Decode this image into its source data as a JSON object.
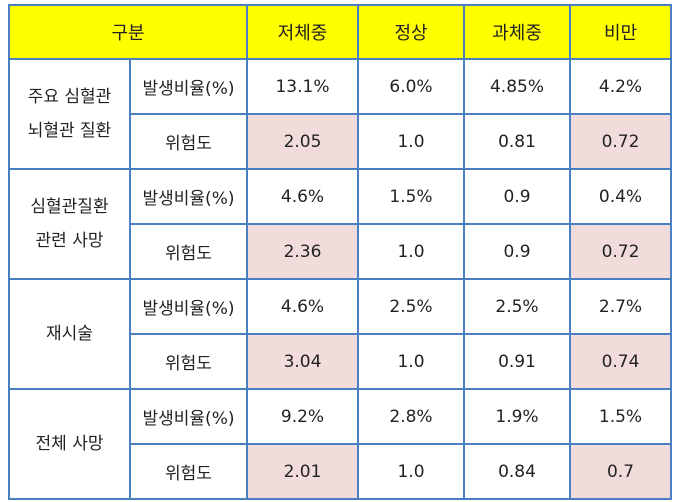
{
  "header": {
    "category": "구분",
    "cols": [
      "저체중",
      "정상",
      "과체중",
      "비만"
    ]
  },
  "groups": [
    {
      "label_lines": [
        "주요 심혈관",
        "뇌혈관 질환"
      ],
      "rows": [
        {
          "label": "발생비율(%)",
          "values": [
            "13.1%",
            "6.0%",
            "4.85%",
            "4.2%"
          ]
        },
        {
          "label": "위험도",
          "values": [
            "2.05",
            "1.0",
            "0.81",
            "0.72"
          ]
        }
      ]
    },
    {
      "label_lines": [
        "심혈관질환",
        "관련 사망"
      ],
      "rows": [
        {
          "label": "발생비율(%)",
          "values": [
            "4.6%",
            "1.5%",
            "0.9",
            "0.4%"
          ]
        },
        {
          "label": "위험도",
          "values": [
            "2.36",
            "1.0",
            "0.9",
            "0.72"
          ]
        }
      ]
    },
    {
      "label_lines": [
        "재시술"
      ],
      "rows": [
        {
          "label": "발생비율(%)",
          "values": [
            "4.6%",
            "2.5%",
            "2.5%",
            "2.7%"
          ]
        },
        {
          "label": "위험도",
          "values": [
            "3.04",
            "1.0",
            "0.91",
            "0.74"
          ]
        }
      ]
    },
    {
      "label_lines": [
        "전체 사망"
      ],
      "rows": [
        {
          "label": "발생비율(%)",
          "values": [
            "9.2%",
            "2.8%",
            "1.9%",
            "1.5%"
          ]
        },
        {
          "label": "위험도",
          "values": [
            "2.01",
            "1.0",
            "0.84",
            "0.7"
          ]
        }
      ]
    }
  ],
  "colors": {
    "header_bg": "#ffff00",
    "highlight_bg": "#f2dcdb",
    "border": "#4a7fc1"
  }
}
